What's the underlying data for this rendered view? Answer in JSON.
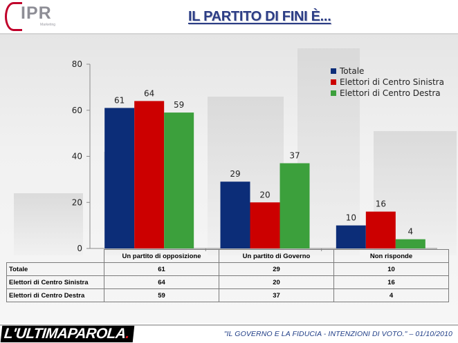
{
  "header": {
    "logo_text": "IPR",
    "logo_tagline": "Marketing",
    "title": "IL PARTITO DI FINI È..."
  },
  "chart_data": {
    "type": "bar",
    "categories": [
      "Un partito di opposizione",
      "Un partito di Governo",
      "Non risponde"
    ],
    "series": [
      {
        "name": "Totale",
        "values": [
          61,
          29,
          10
        ],
        "color": "#0c2d78"
      },
      {
        "name": "Elettori di Centro Sinistra",
        "values": [
          64,
          20,
          16
        ],
        "color": "#cc0000"
      },
      {
        "name": "Elettori di Centro Destra",
        "values": [
          59,
          37,
          4
        ],
        "color": "#3ca03c"
      }
    ],
    "y_ticks": [
      0,
      20,
      40,
      60,
      80
    ],
    "ylim": [
      0,
      80
    ],
    "grid": false,
    "legend_position": "top-right",
    "data_labels": true
  },
  "table": {
    "columns": [
      "Un partito di opposizione",
      "Un partito di Governo",
      "Non risponde"
    ],
    "rows": [
      {
        "label": "Totale",
        "values": [
          "61",
          "29",
          "10"
        ]
      },
      {
        "label": "Elettori di Centro Sinistra",
        "values": [
          "64",
          "20",
          "16"
        ]
      },
      {
        "label": "Elettori di Centro Destra",
        "values": [
          "59",
          "37",
          "4"
        ]
      }
    ]
  },
  "footer": {
    "brand_prefix": "L'ULTIMAPAROLA",
    "brand_dot": ".",
    "caption": "\"IL GOVERNO E LA FIDUCIA - INTENZIONI DI VOTO.\" – 01/10/2010"
  }
}
